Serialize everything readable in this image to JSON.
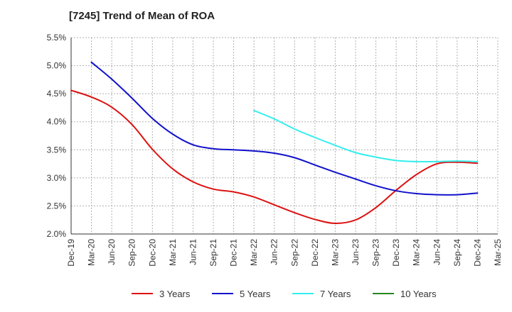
{
  "chart_data": {
    "type": "line",
    "title": "[7245]  Trend of Mean of ROA",
    "xlabel": "",
    "ylabel": "",
    "x_ticks": [
      "Dec-19",
      "Mar-20",
      "Jun-20",
      "Sep-20",
      "Dec-20",
      "Mar-21",
      "Jun-21",
      "Sep-21",
      "Dec-21",
      "Mar-22",
      "Jun-22",
      "Sep-22",
      "Dec-22",
      "Mar-23",
      "Jun-23",
      "Sep-23",
      "Dec-23",
      "Mar-24",
      "Jun-24",
      "Sep-24",
      "Dec-24",
      "Mar-25"
    ],
    "y_ticks": [
      "5.5%",
      "5.0%",
      "4.5%",
      "4.0%",
      "3.5%",
      "3.0%",
      "2.5%",
      "2.0%"
    ],
    "y_tick_values": [
      5.5,
      5.0,
      4.5,
      4.0,
      3.5,
      3.0,
      2.5,
      2.0
    ],
    "ylim": [
      2.0,
      5.5
    ],
    "grid": true,
    "legend_position": "bottom",
    "series": [
      {
        "name": "3 Years",
        "color": "#dd1111",
        "values": [
          4.56,
          4.44,
          4.26,
          3.95,
          3.51,
          3.16,
          2.93,
          2.8,
          2.75,
          2.66,
          2.52,
          2.38,
          2.26,
          2.19,
          2.25,
          2.47,
          2.78,
          3.06,
          3.25,
          3.28,
          3.26,
          null
        ]
      },
      {
        "name": "5 Years",
        "color": "#1111cc",
        "values": [
          null,
          5.06,
          4.76,
          4.42,
          4.06,
          3.78,
          3.59,
          3.52,
          3.5,
          3.48,
          3.44,
          3.36,
          3.23,
          3.1,
          2.98,
          2.86,
          2.77,
          2.72,
          2.7,
          2.7,
          2.73,
          null
        ]
      },
      {
        "name": "7 Years",
        "color": "#33eeee",
        "values": [
          null,
          null,
          null,
          null,
          null,
          null,
          null,
          null,
          null,
          4.2,
          4.05,
          3.87,
          3.72,
          3.58,
          3.45,
          3.37,
          3.31,
          3.29,
          3.29,
          3.3,
          3.29,
          null
        ]
      },
      {
        "name": "10 Years",
        "color": "#228822",
        "values": [
          null,
          null,
          null,
          null,
          null,
          null,
          null,
          null,
          null,
          null,
          null,
          null,
          null,
          null,
          null,
          null,
          null,
          null,
          null,
          null,
          null,
          null
        ]
      }
    ]
  }
}
